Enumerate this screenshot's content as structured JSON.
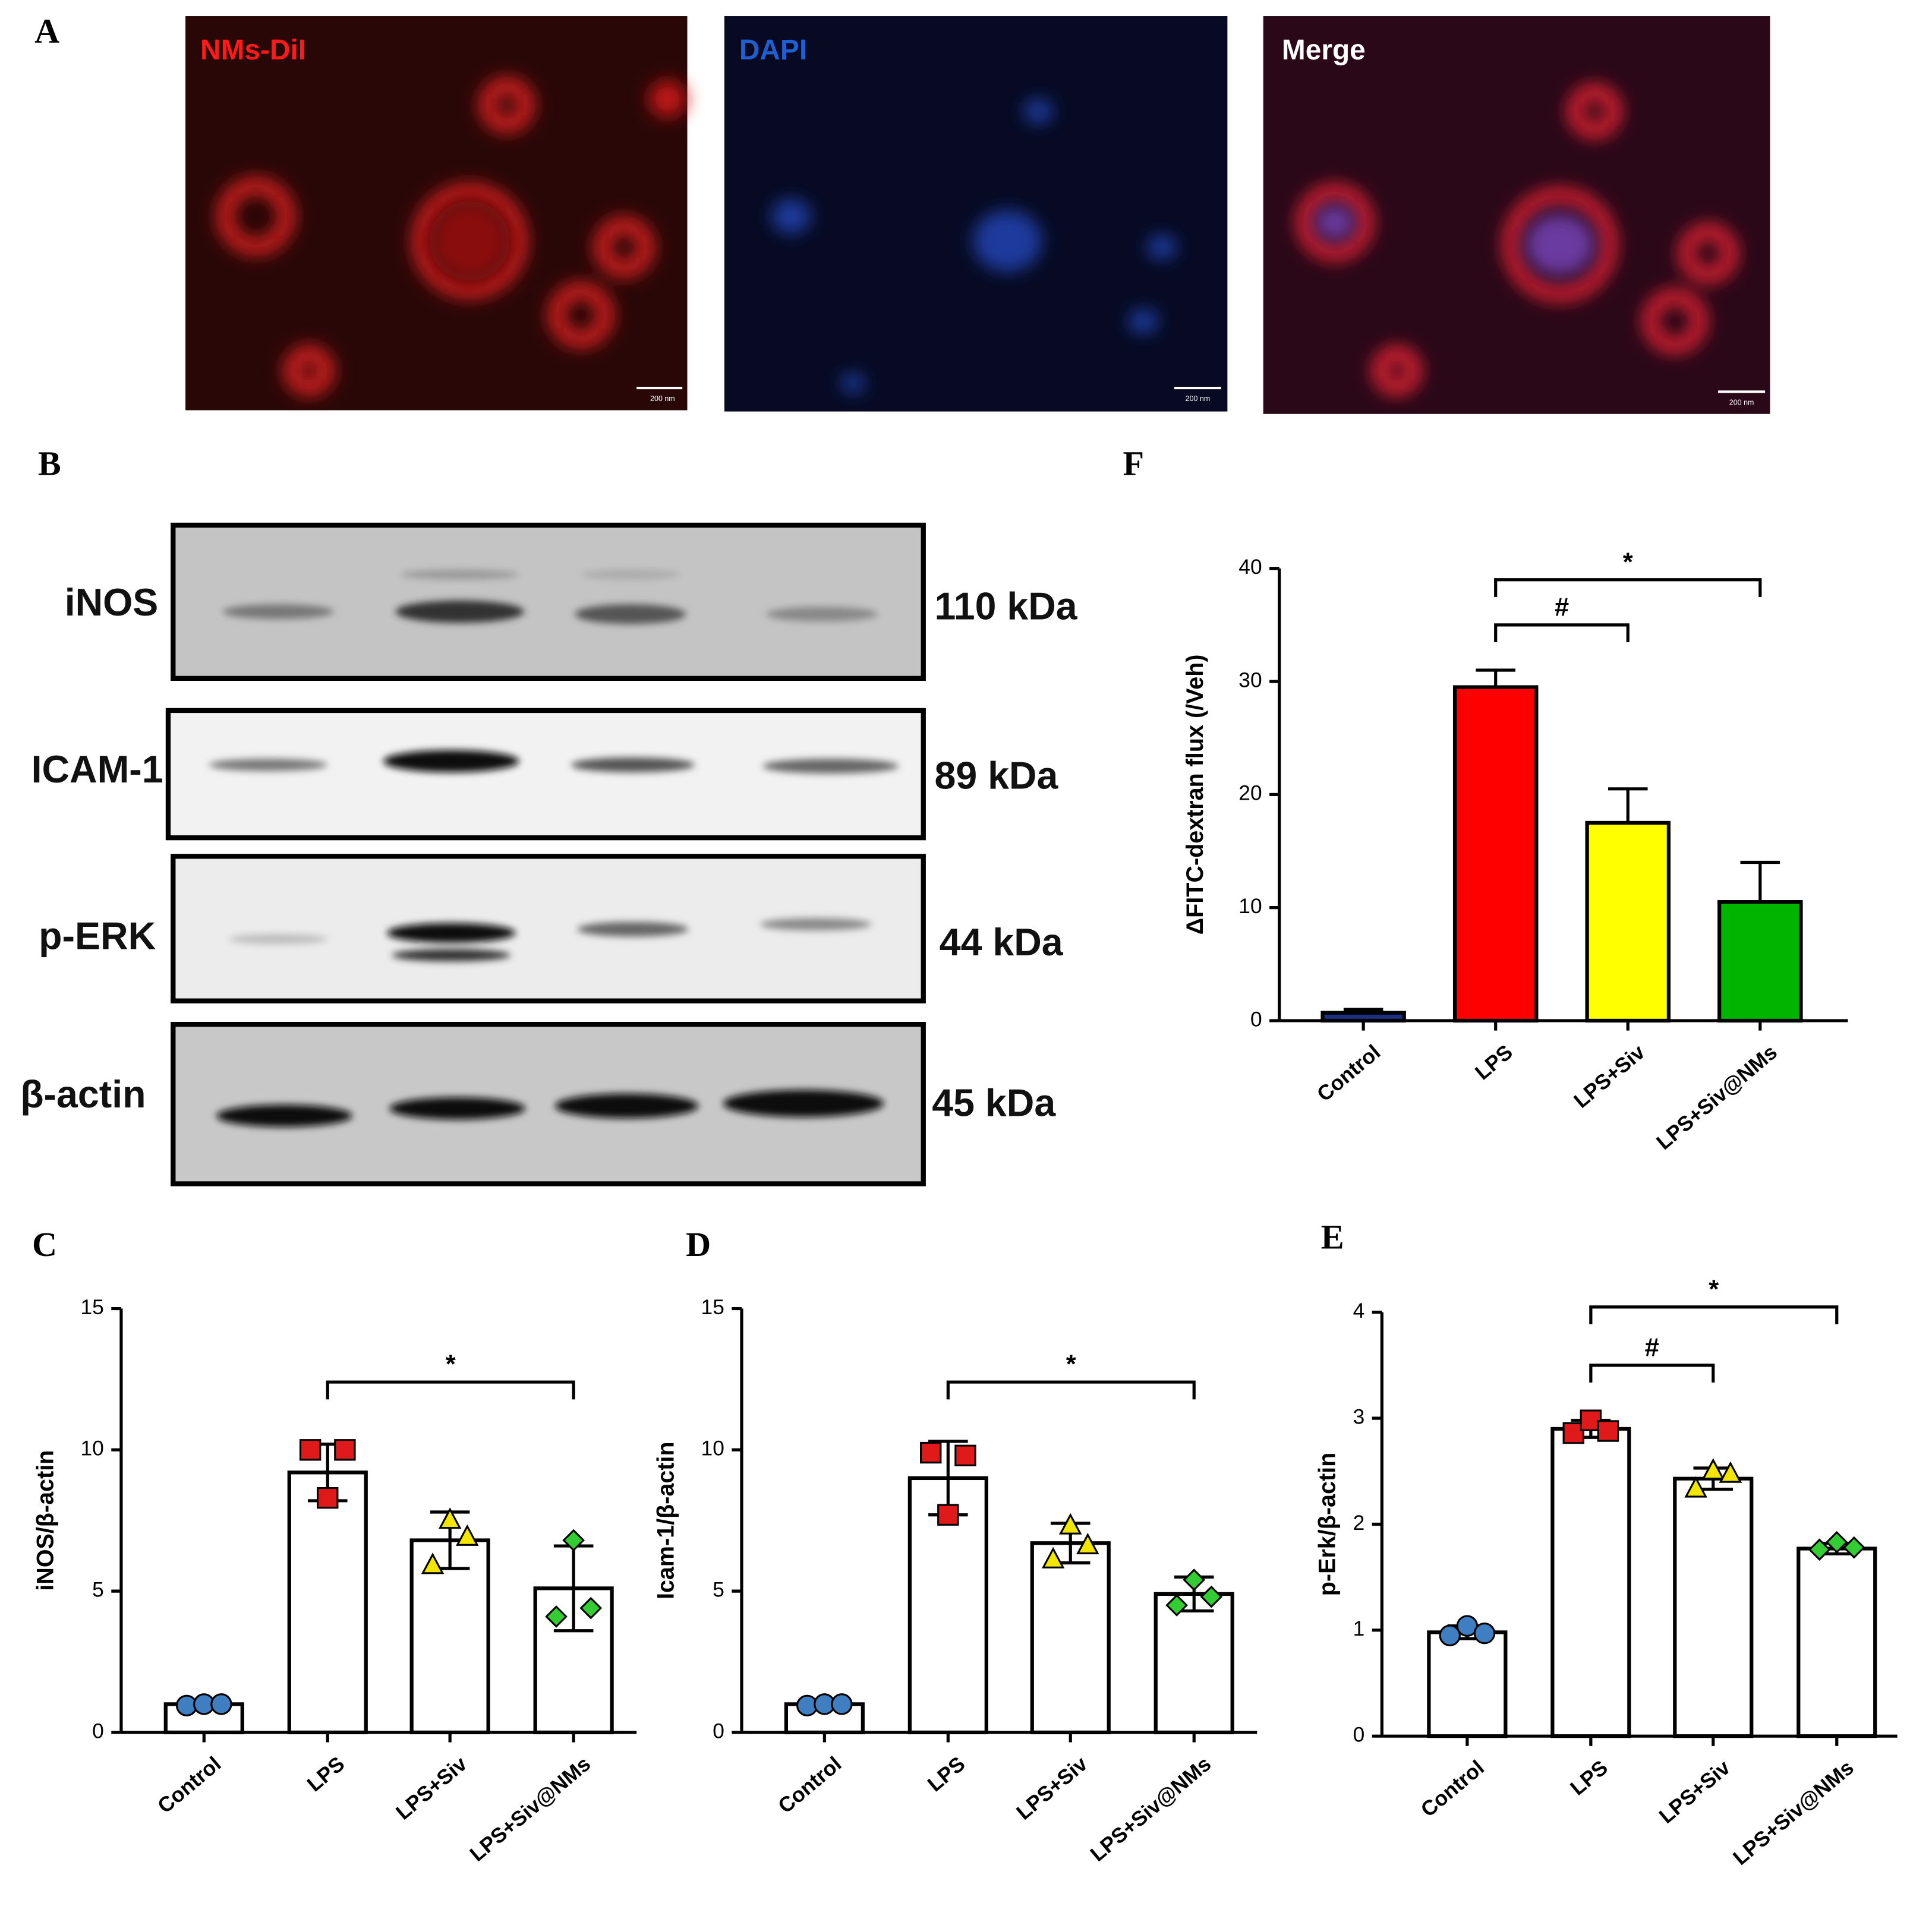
{
  "panel_A": {
    "label": "A",
    "channels": [
      "NMs-DiI",
      "DAPI",
      "Merge"
    ],
    "scale_bar": "200 nm"
  },
  "panel_B": {
    "label": "B",
    "proteins": [
      "iNOS",
      "ICAM-1",
      "p-ERK",
      "β-actin"
    ],
    "sizes": [
      "110 kDa",
      "89 kDa",
      "44 kDa",
      "45 kDa"
    ]
  },
  "chart_data": [
    {
      "type": "bar",
      "panel_label": "C",
      "y_label": "iNOS/β-actin",
      "categories": [
        "Control",
        "LPS",
        "LPS+Siv",
        "LPS+Siv@NMs"
      ],
      "values": [
        1.0,
        9.2,
        6.8,
        5.1
      ],
      "errors": [
        0.05,
        1.0,
        1.0,
        1.5
      ],
      "error_bars": "both",
      "points": [
        [
          0.95,
          1.0,
          1.0
        ],
        [
          10.0,
          8.3,
          10.0
        ],
        [
          5.9,
          7.5,
          6.9
        ],
        [
          4.1,
          6.8,
          4.4
        ]
      ],
      "markers": [
        "circle",
        "square",
        "triangle",
        "diamond"
      ],
      "marker_colors": [
        "#3f7fc1",
        "#e0191b",
        "#f2e600",
        "#33cc33"
      ],
      "bar_colors": [
        "#ffffff",
        "#ffffff",
        "#ffffff",
        "#ffffff"
      ],
      "ylim": [
        0,
        15
      ],
      "yticks": [
        0,
        5,
        10,
        15
      ],
      "annotations": [
        {
          "text": "*",
          "between": [
            1,
            3
          ],
          "y": 12.4
        }
      ]
    },
    {
      "type": "bar",
      "panel_label": "D",
      "y_label": "Icam-1/β-actin",
      "categories": [
        "Control",
        "LPS",
        "LPS+Siv",
        "LPS+Siv@NMs"
      ],
      "values": [
        1.0,
        9.0,
        6.7,
        4.9
      ],
      "errors": [
        0.05,
        1.3,
        0.7,
        0.6
      ],
      "error_bars": "both",
      "points": [
        [
          0.95,
          1.0,
          1.0
        ],
        [
          9.9,
          7.7,
          9.8
        ],
        [
          6.1,
          7.3,
          6.6
        ],
        [
          4.5,
          5.4,
          4.8
        ]
      ],
      "markers": [
        "circle",
        "square",
        "triangle",
        "diamond"
      ],
      "marker_colors": [
        "#3f7fc1",
        "#e0191b",
        "#f2e600",
        "#33cc33"
      ],
      "bar_colors": [
        "#ffffff",
        "#ffffff",
        "#ffffff",
        "#ffffff"
      ],
      "ylim": [
        0,
        15
      ],
      "yticks": [
        0,
        5,
        10,
        15
      ],
      "annotations": [
        {
          "text": "*",
          "between": [
            1,
            3
          ],
          "y": 12.4
        }
      ]
    },
    {
      "type": "bar",
      "panel_label": "E",
      "y_label": "p-Erk/β-actin",
      "categories": [
        "Control",
        "LPS",
        "LPS+Siv",
        "LPS+Siv@NMs"
      ],
      "values": [
        0.98,
        2.9,
        2.43,
        1.77
      ],
      "errors": [
        0.06,
        0.08,
        0.1,
        0.05
      ],
      "error_bars": "both",
      "points": [
        [
          0.95,
          1.04,
          0.97
        ],
        [
          2.86,
          2.98,
          2.88
        ],
        [
          2.33,
          2.5,
          2.47
        ],
        [
          1.76,
          1.83,
          1.78
        ]
      ],
      "markers": [
        "circle",
        "square",
        "triangle",
        "diamond"
      ],
      "marker_colors": [
        "#3f7fc1",
        "#e0191b",
        "#f2e600",
        "#33cc33"
      ],
      "bar_colors": [
        "#ffffff",
        "#ffffff",
        "#ffffff",
        "#ffffff"
      ],
      "ylim": [
        0,
        4
      ],
      "yticks": [
        0,
        1,
        2,
        3,
        4
      ],
      "annotations": [
        {
          "text": "#",
          "between": [
            1,
            2
          ],
          "y": 3.5
        },
        {
          "text": "*",
          "between": [
            1,
            3
          ],
          "y": 4.05
        }
      ]
    },
    {
      "type": "bar",
      "panel_label": "F",
      "y_label": "ΔFITC-dextran flux (/Veh)",
      "categories": [
        "Control",
        "LPS",
        "LPS+Siv",
        "LPS+Siv@NMs"
      ],
      "values": [
        0.7,
        29.5,
        17.5,
        10.5
      ],
      "errors": [
        0.3,
        1.5,
        3.0,
        3.5
      ],
      "error_bars": "up",
      "bar_colors": [
        "#1f2f80",
        "#ff0000",
        "#ffff00",
        "#00b400"
      ],
      "ylim": [
        0,
        40
      ],
      "yticks": [
        0,
        10,
        20,
        30,
        40
      ],
      "annotations": [
        {
          "text": "#",
          "between": [
            1,
            2
          ],
          "y": 35
        },
        {
          "text": "*",
          "between": [
            1,
            3
          ],
          "y": 39
        }
      ]
    }
  ]
}
